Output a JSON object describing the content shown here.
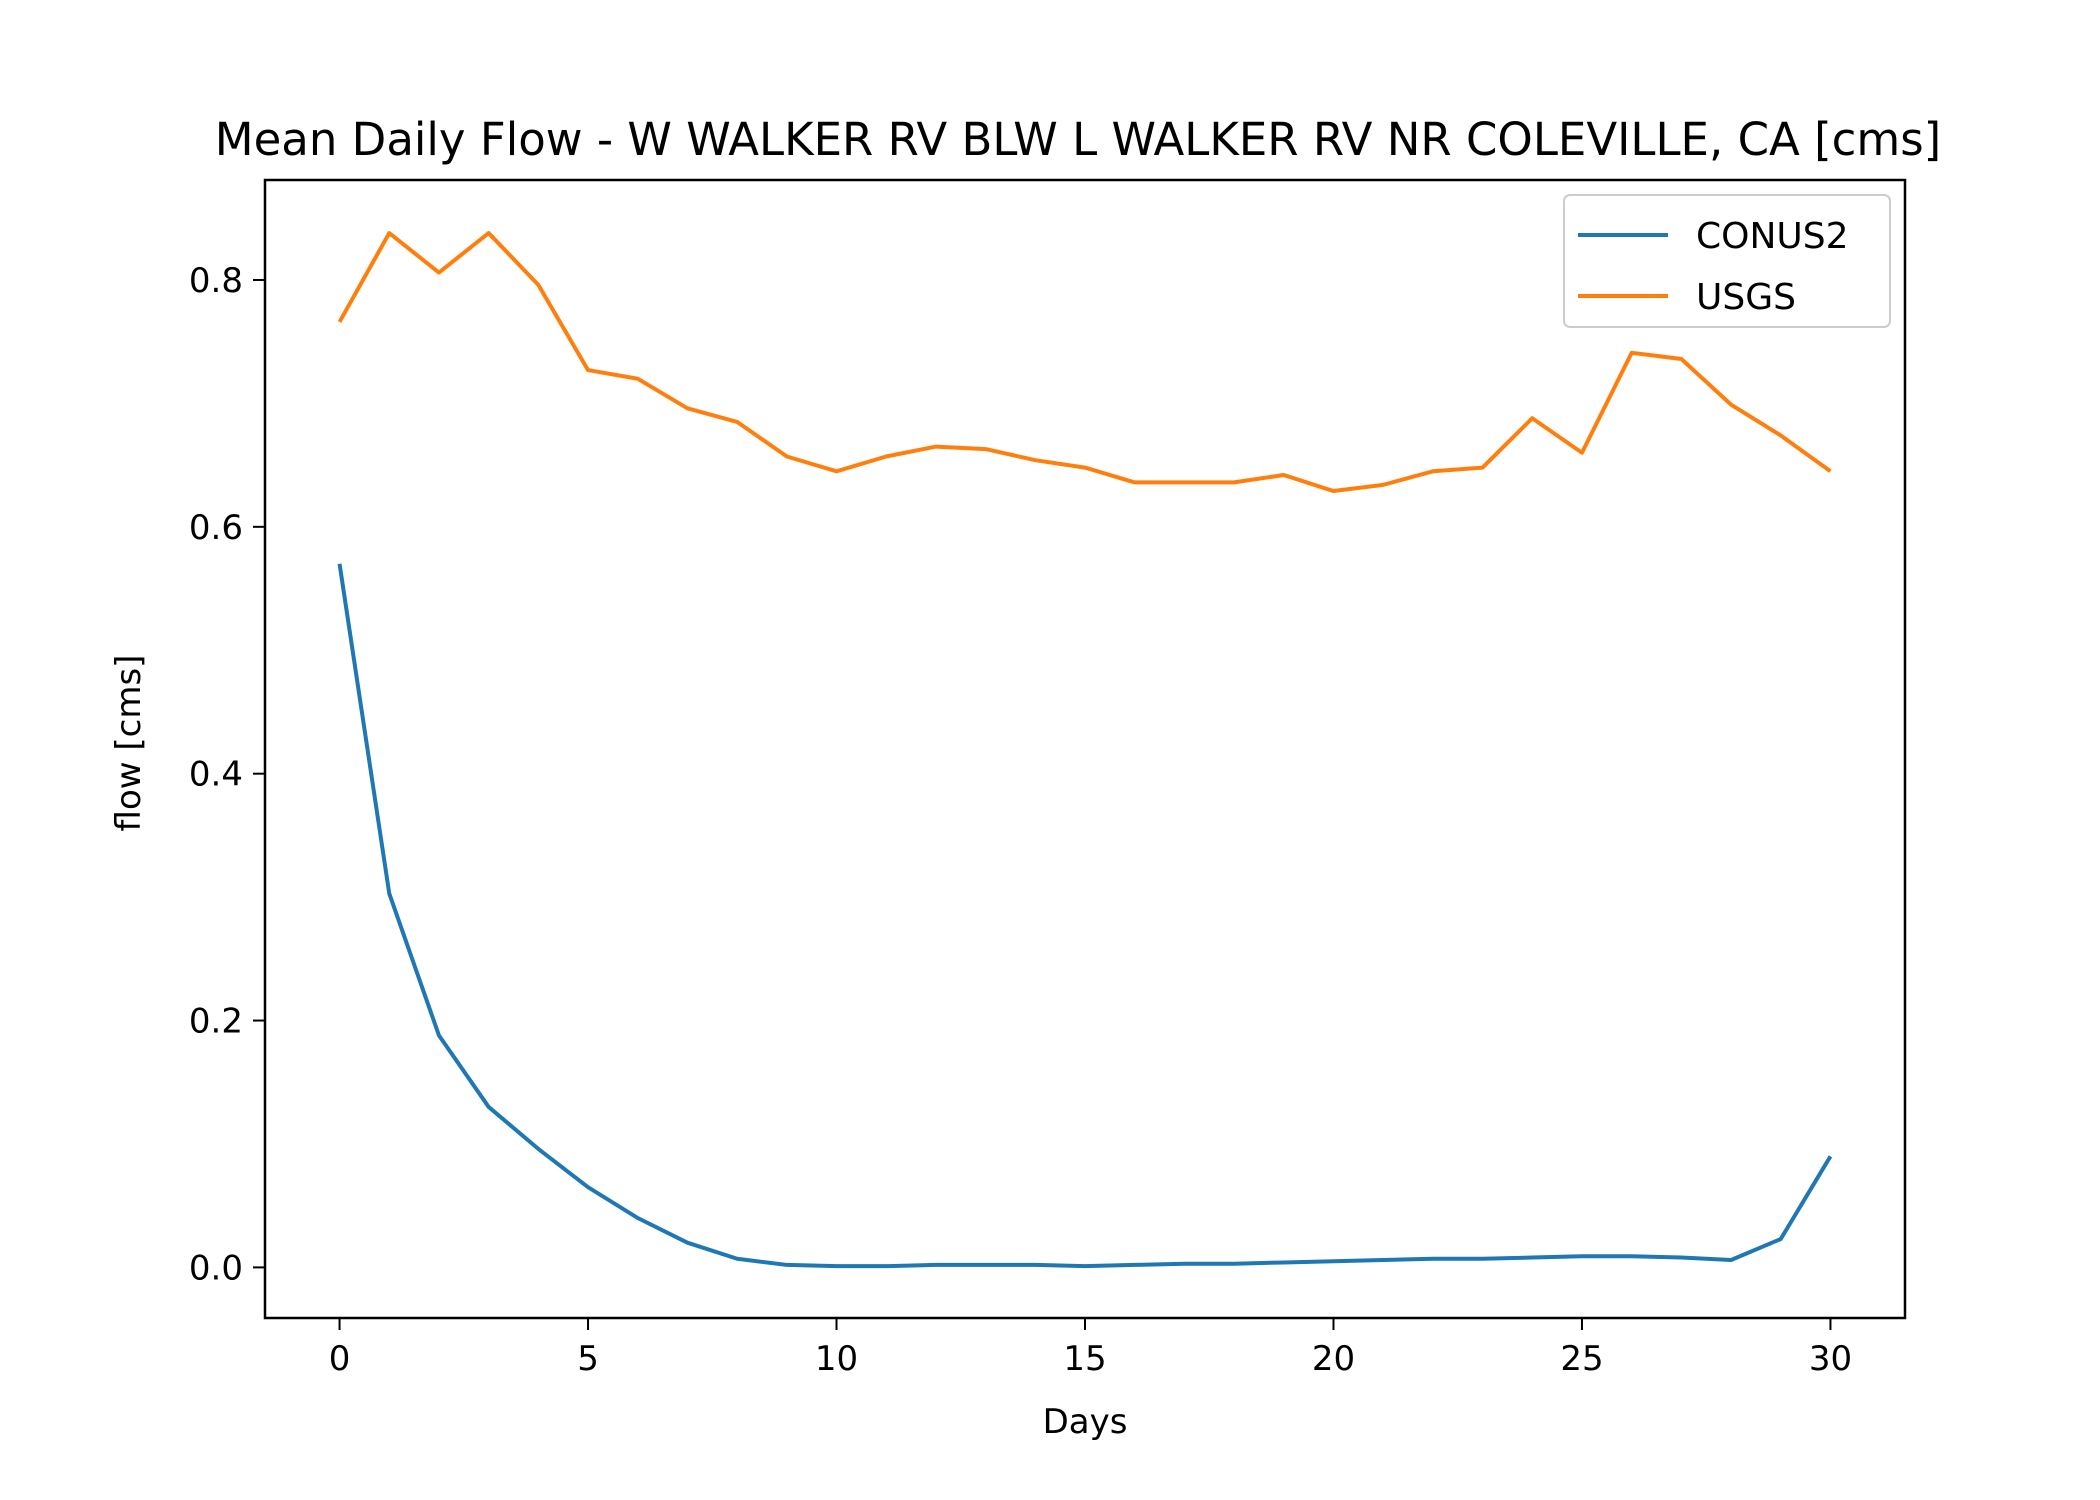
{
  "chart_data": {
    "type": "line",
    "title": "Mean Daily Flow - W WALKER RV BLW L WALKER RV NR COLEVILLE, CA [cms]",
    "xlabel": "Days",
    "ylabel": "flow [cms]",
    "xlim": [
      -1.5,
      31.5
    ],
    "ylim": [
      -0.041,
      0.881
    ],
    "xticks": [
      0,
      5,
      10,
      15,
      20,
      25,
      30
    ],
    "yticks": [
      0.0,
      0.2,
      0.4,
      0.6,
      0.8
    ],
    "grid": false,
    "legend_position": "top-right",
    "x": [
      0,
      1,
      2,
      3,
      4,
      5,
      6,
      7,
      8,
      9,
      10,
      11,
      12,
      13,
      14,
      15,
      16,
      17,
      18,
      19,
      20,
      21,
      22,
      23,
      24,
      25,
      26,
      27,
      28,
      29,
      30
    ],
    "series": [
      {
        "name": "CONUS2",
        "color": "#1f77b4",
        "values": [
          0.57,
          0.303,
          0.188,
          0.13,
          0.096,
          0.065,
          0.04,
          0.02,
          0.007,
          0.002,
          0.001,
          0.001,
          0.002,
          0.002,
          0.002,
          0.001,
          0.002,
          0.003,
          0.003,
          0.004,
          0.005,
          0.006,
          0.007,
          0.007,
          0.008,
          0.009,
          0.009,
          0.008,
          0.006,
          0.023,
          0.09
        ]
      },
      {
        "name": "USGS",
        "color": "#ff7f0e",
        "values": [
          0.766,
          0.838,
          0.806,
          0.838,
          0.796,
          0.727,
          0.72,
          0.696,
          0.685,
          0.657,
          0.645,
          0.657,
          0.665,
          0.663,
          0.654,
          0.648,
          0.636,
          0.636,
          0.636,
          0.642,
          0.629,
          0.634,
          0.645,
          0.648,
          0.688,
          0.66,
          0.741,
          0.736,
          0.699,
          0.674,
          0.645
        ]
      }
    ]
  }
}
